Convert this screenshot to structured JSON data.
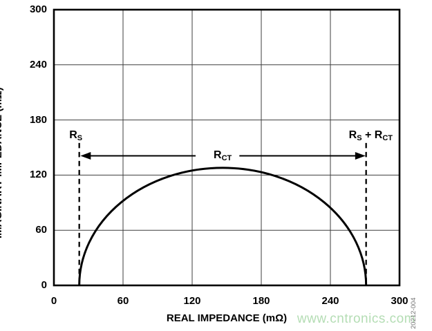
{
  "figure_number": "20212-004",
  "watermark": {
    "text": "www.cntronics.com",
    "color": "#b4ddb4"
  },
  "colors": {
    "line": "#000000",
    "grid": "#3d3d3d",
    "frame": "#000000",
    "background": "#ffffff",
    "fig_number": "#787878"
  },
  "chart_data": {
    "type": "line",
    "subtype": "nyquist-impedance-semicircle",
    "title": "",
    "xlabel": "REAL IMPEDANCE (mΩ)",
    "ylabel": "IMAGINARY IMPEDANCE (mΩ)",
    "xlim": [
      0,
      300
    ],
    "ylim": [
      0,
      300
    ],
    "x_ticks": [
      0,
      60,
      120,
      180,
      240,
      300
    ],
    "y_ticks": [
      0,
      60,
      120,
      180,
      240,
      300
    ],
    "grid": true,
    "legend": "none",
    "curve": {
      "description": "semicircular impedance arc from (Rs,0) to (Rs+Rct,0)",
      "x_start": 22,
      "x_end": 271,
      "peak_y": 128
    },
    "series": [
      {
        "name": "impedance-arc",
        "points": [
          {
            "x": 22,
            "y": 0
          },
          {
            "x": 35,
            "y": 57
          },
          {
            "x": 60,
            "y": 92
          },
          {
            "x": 90,
            "y": 114
          },
          {
            "x": 120,
            "y": 125
          },
          {
            "x": 146,
            "y": 128
          },
          {
            "x": 180,
            "y": 123
          },
          {
            "x": 210,
            "y": 110
          },
          {
            "x": 240,
            "y": 85
          },
          {
            "x": 260,
            "y": 53
          },
          {
            "x": 271,
            "y": 0
          }
        ]
      }
    ],
    "annotations": {
      "rs": {
        "x": 22,
        "dash_top": 155,
        "label_x": 19,
        "label_y": 156,
        "label_parts": [
          {
            "text": "R"
          },
          {
            "text": "S",
            "sub": true
          }
        ]
      },
      "rs_plus_rct": {
        "x": 271,
        "dash_top": 155,
        "label_x": 275,
        "label_y": 156,
        "label_parts": [
          {
            "text": "R"
          },
          {
            "text": "S",
            "sub": true
          },
          {
            "text": " + R"
          },
          {
            "text": "CT",
            "sub": true
          }
        ]
      },
      "rct_arrow": {
        "y": 141,
        "x_from": 23,
        "x_to": 270.5,
        "gap_from": 123,
        "gap_to": 161,
        "label_x": 146.5,
        "label_parts": [
          {
            "text": "R"
          },
          {
            "text": "CT",
            "sub": true
          }
        ]
      }
    }
  }
}
